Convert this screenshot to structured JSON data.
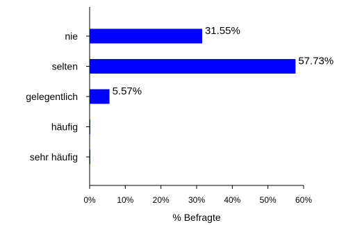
{
  "chart_data": {
    "type": "bar",
    "orientation": "horizontal",
    "categories": [
      "nie",
      "selten",
      "gelegentlich",
      "häufig",
      "sehr häufig"
    ],
    "values": [
      31.55,
      57.73,
      5.57,
      0,
      0
    ],
    "data_labels": [
      "31.55%",
      "57.73%",
      "5.57%",
      "",
      ""
    ],
    "xlabel": "% Befragte",
    "xlim": [
      0,
      60
    ],
    "x_ticks": [
      0,
      10,
      20,
      30,
      40,
      50,
      60
    ],
    "x_tick_labels": [
      "0%",
      "10%",
      "20%",
      "30%",
      "40%",
      "50%",
      "60%"
    ],
    "grid": false,
    "legend": "none",
    "bar_color": "#0000ff"
  }
}
